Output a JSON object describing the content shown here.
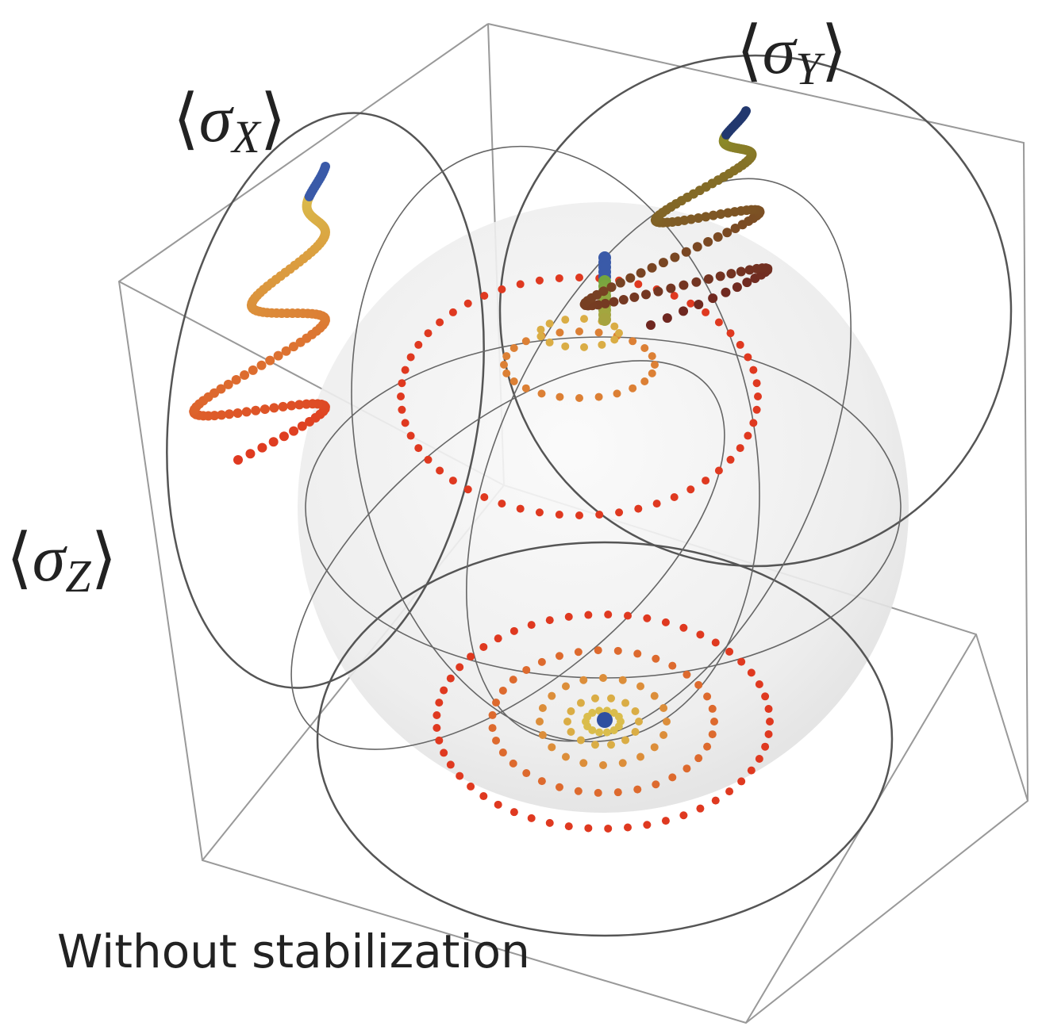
{
  "axis_labels": [
    {
      "open": "⟨",
      "symbol": "σ",
      "subscript": "X",
      "close": "⟩"
    },
    {
      "open": "⟨",
      "symbol": "σ",
      "subscript": "Y",
      "close": "⟩"
    },
    {
      "open": "⟨",
      "symbol": "σ",
      "subscript": "Z",
      "close": "⟩"
    }
  ],
  "caption": "Without stabilization"
}
